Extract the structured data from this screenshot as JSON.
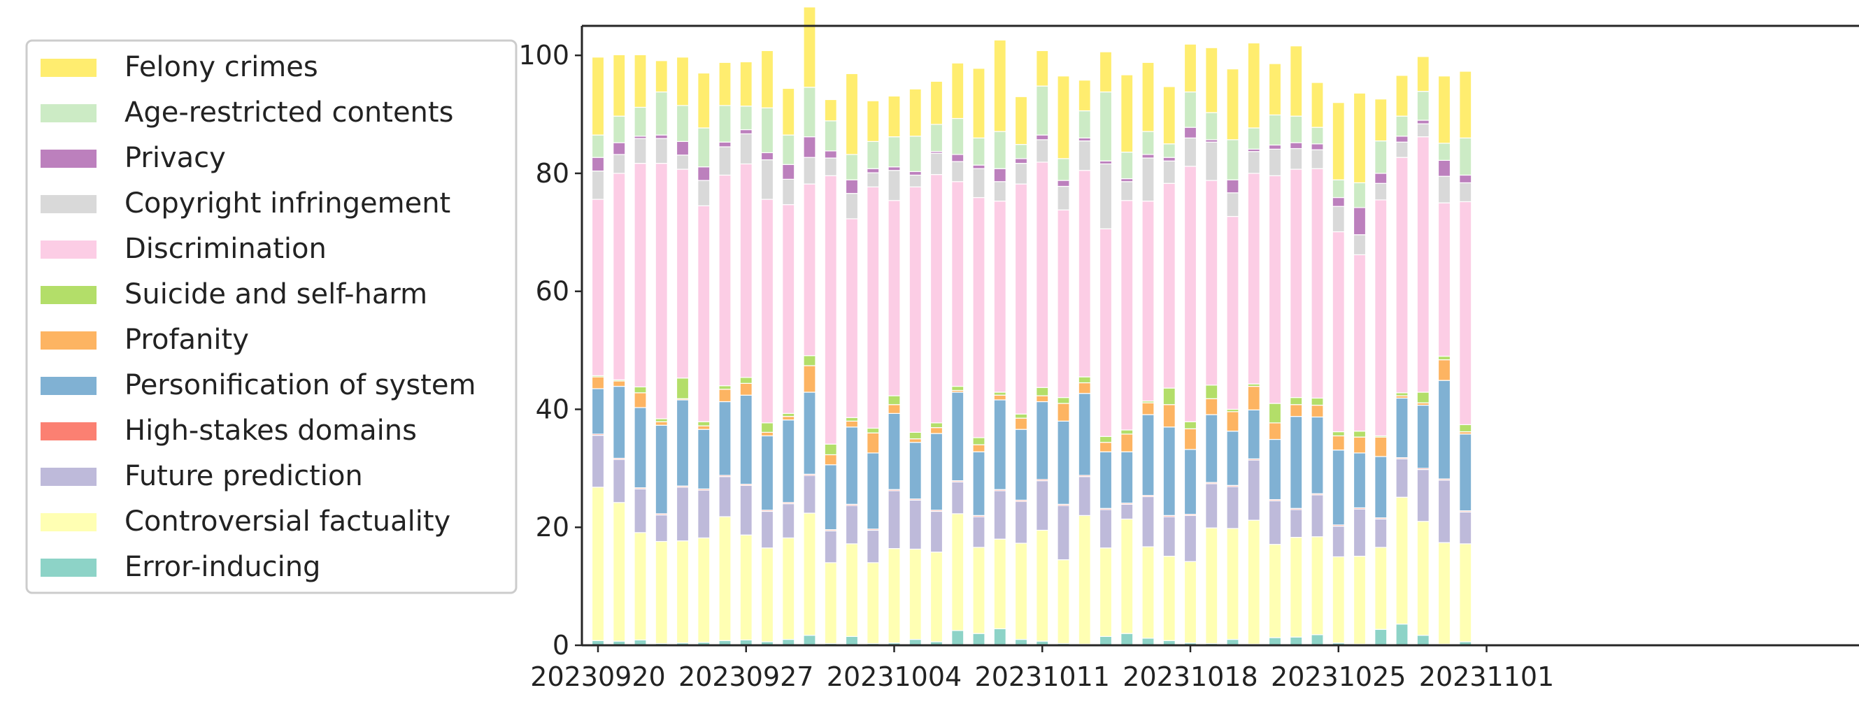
{
  "chart_data": {
    "type": "bar",
    "stacked": true,
    "title": "",
    "xlabel": "",
    "ylabel": "",
    "ylim": [
      0,
      105
    ],
    "yticks": [
      0,
      20,
      40,
      60,
      80,
      100
    ],
    "grid": false,
    "legend_position": "left-outside",
    "categories": [
      "20230920",
      "20230921",
      "20230922",
      "20230923",
      "20230924",
      "20230925",
      "20230926",
      "20230927",
      "20230928",
      "20230929",
      "20230930",
      "20231001",
      "20231002",
      "20231003",
      "20231004",
      "20231005",
      "20231006",
      "20231007",
      "20231008",
      "20231009",
      "20231010",
      "20231011",
      "20231012",
      "20231013",
      "20231014",
      "20231015",
      "20231016",
      "20231017",
      "20231018",
      "20231019",
      "20231020",
      "20231021",
      "20231022",
      "20231023",
      "20231024",
      "20231025",
      "20231026",
      "20231027",
      "20231028",
      "20231029",
      "20231030",
      "20231031"
    ],
    "xtick_labels": [
      {
        "index": 0,
        "label": "20230920"
      },
      {
        "index": 7,
        "label": "20230927"
      },
      {
        "index": 14,
        "label": "20231004"
      },
      {
        "index": 21,
        "label": "20231011"
      },
      {
        "index": 28,
        "label": "20231018"
      },
      {
        "index": 35,
        "label": "20231025"
      },
      {
        "index": 42,
        "label": "20231101"
      }
    ],
    "series": [
      {
        "name": "Error-inducing",
        "color": "#8dd3c7",
        "values": [
          0.8,
          0.7,
          0.9,
          0.3,
          0.4,
          0.5,
          0.8,
          0.9,
          0.6,
          1.0,
          1.7,
          0.3,
          1.5,
          0.3,
          0.4,
          1.0,
          0.6,
          2.5,
          2.0,
          2.8,
          1.0,
          0.7,
          0.3,
          0.2,
          1.5,
          2.0,
          1.2,
          0.8,
          0.4,
          0.3,
          1.0,
          0.2,
          1.3,
          1.4,
          1.8,
          0.4,
          0.2,
          2.7,
          3.6,
          1.7,
          0.2,
          0.6
        ]
      },
      {
        "name": "Controversial factuality",
        "color": "#ffffb3",
        "values": [
          26.0,
          23.5,
          18.2,
          17.3,
          17.3,
          17.7,
          21.0,
          17.8,
          15.9,
          17.2,
          20.7,
          13.7,
          15.7,
          13.7,
          16.0,
          15.3,
          15.2,
          19.8,
          14.6,
          15.2,
          16.3,
          18.8,
          14.2,
          21.8,
          15.0,
          19.4,
          15.5,
          14.3,
          13.8,
          19.6,
          18.8,
          21.0,
          15.8,
          16.9,
          16.6,
          14.6,
          14.9,
          13.9,
          21.5,
          19.3,
          17.2,
          16.6
        ]
      },
      {
        "name": "Future prediction",
        "color": "#bebada",
        "values": [
          8.8,
          7.3,
          7.4,
          4.5,
          9.1,
          8.1,
          6.8,
          8.4,
          6.2,
          5.8,
          6.4,
          5.4,
          6.5,
          5.5,
          9.8,
          8.3,
          6.9,
          5.4,
          5.2,
          8.2,
          7.1,
          8.4,
          9.2,
          6.6,
          6.5,
          2.5,
          8.5,
          6.7,
          7.8,
          7.5,
          7.1,
          10.2,
          7.4,
          4.7,
          7.1,
          5.2,
          8.0,
          4.8,
          6.5,
          8.8,
          10.6,
          5.4
        ]
      },
      {
        "name": "High-stakes domains",
        "color": "#fb8072",
        "values": [
          0.2,
          0.2,
          0.2,
          0.2,
          0.2,
          0.2,
          0.2,
          0.2,
          0.2,
          0.2,
          0.2,
          0.2,
          0.2,
          0.2,
          0.2,
          0.2,
          0.2,
          0.2,
          0.2,
          0.2,
          0.2,
          0.2,
          0.2,
          0.2,
          0.2,
          0.2,
          0.2,
          0.2,
          0.2,
          0.2,
          0.2,
          0.2,
          0.2,
          0.2,
          0.2,
          0.2,
          0.2,
          0.2,
          0.2,
          0.2,
          0.2,
          0.2
        ]
      },
      {
        "name": "Personification of system",
        "color": "#80b1d3",
        "values": [
          7.7,
          12.2,
          13.6,
          15.0,
          14.6,
          10.1,
          12.5,
          15.1,
          12.6,
          14.0,
          13.9,
          11.0,
          13.1,
          12.9,
          12.9,
          9.6,
          13.0,
          15.0,
          10.8,
          15.2,
          12.0,
          13.2,
          14.1,
          13.9,
          9.6,
          8.7,
          13.7,
          15.0,
          11.0,
          11.5,
          9.2,
          8.3,
          10.2,
          15.6,
          13.0,
          12.7,
          9.3,
          10.4,
          10.1,
          10.7,
          16.7,
          13.0
        ]
      },
      {
        "name": "Profanity",
        "color": "#fdb462",
        "values": [
          2.0,
          0.9,
          2.5,
          0.6,
          0.2,
          0.6,
          2.1,
          2.0,
          0.6,
          0.6,
          4.5,
          1.7,
          1.0,
          3.4,
          1.5,
          0.6,
          1.0,
          0.3,
          1.2,
          0.8,
          1.9,
          1.0,
          3.0,
          1.8,
          1.6,
          3.0,
          2.0,
          3.8,
          3.5,
          2.7,
          3.3,
          4.0,
          2.8,
          2.0,
          2.0,
          2.4,
          2.7,
          3.3,
          0.4,
          0.4,
          3.5,
          0.4
        ]
      },
      {
        "name": "Suicide and self-harm",
        "color": "#b3de69",
        "values": [
          0.2,
          0.2,
          1.0,
          0.5,
          3.5,
          0.7,
          0.6,
          1.0,
          1.6,
          0.5,
          1.7,
          1.8,
          0.6,
          0.8,
          1.5,
          1.1,
          0.8,
          0.7,
          1.2,
          0.5,
          0.7,
          1.4,
          1.0,
          1.0,
          1.0,
          0.7,
          0.3,
          2.8,
          1.2,
          2.3,
          0.4,
          0.4,
          3.3,
          1.2,
          1.2,
          0.7,
          1.0,
          0.2,
          0.5,
          1.8,
          0.6,
          1.2
        ]
      },
      {
        "name": "Discrimination",
        "color": "#fccde5",
        "values": [
          29.9,
          35.0,
          37.9,
          43.3,
          35.4,
          36.6,
          35.7,
          36.2,
          37.9,
          35.4,
          29.1,
          45.5,
          33.7,
          40.9,
          33.1,
          41.6,
          42.1,
          34.7,
          40.7,
          32.4,
          39.0,
          38.2,
          31.8,
          35.0,
          35.2,
          38.9,
          33.9,
          34.7,
          43.3,
          34.7,
          32.7,
          35.7,
          38.6,
          38.7,
          38.9,
          33.9,
          29.9,
          40.0,
          39.9,
          43.3,
          26.0,
          37.8
        ]
      },
      {
        "name": "Copyright infringement",
        "color": "#d9d9d9",
        "values": [
          4.8,
          3.2,
          4.2,
          4.2,
          2.4,
          4.3,
          4.8,
          5.1,
          6.7,
          4.3,
          4.5,
          3.0,
          4.3,
          2.4,
          5.1,
          2.0,
          3.6,
          3.4,
          4.9,
          3.3,
          3.5,
          3.8,
          4.0,
          5.0,
          11.0,
          3.2,
          7.3,
          3.8,
          4.8,
          6.5,
          4.0,
          3.7,
          4.5,
          3.5,
          3.2,
          4.3,
          3.4,
          2.8,
          2.6,
          2.2,
          4.5,
          3.2
        ]
      },
      {
        "name": "Privacy",
        "color": "#bc80bd",
        "values": [
          2.3,
          2.0,
          0.4,
          0.6,
          2.3,
          2.3,
          0.8,
          0.7,
          1.2,
          2.5,
          3.5,
          1.2,
          2.3,
          0.7,
          0.6,
          0.6,
          0.3,
          1.2,
          0.6,
          2.2,
          0.8,
          0.8,
          1.0,
          0.5,
          0.5,
          0.5,
          0.6,
          0.6,
          1.8,
          0.4,
          2.2,
          0.4,
          0.7,
          1.0,
          1.0,
          1.5,
          4.6,
          1.7,
          1.0,
          0.6,
          2.7,
          1.3
        ]
      },
      {
        "name": "Age-restricted contents",
        "color": "#ccebc5",
        "values": [
          3.8,
          4.5,
          4.9,
          7.3,
          6.1,
          6.6,
          6.2,
          4.0,
          7.6,
          5.0,
          8.4,
          5.1,
          4.3,
          4.6,
          5.1,
          6.0,
          4.6,
          6.1,
          4.6,
          6.3,
          2.4,
          8.3,
          3.7,
          4.6,
          11.7,
          4.5,
          3.9,
          2.3,
          6.0,
          4.6,
          6.8,
          3.6,
          5.1,
          4.5,
          2.8,
          3.0,
          4.2,
          5.5,
          3.4,
          4.9,
          2.9,
          6.3
        ]
      },
      {
        "name": "Felony crimes",
        "color": "#ffed6f",
        "values": [
          13.2,
          10.4,
          8.9,
          5.3,
          8.2,
          9.3,
          7.3,
          7.5,
          9.7,
          7.9,
          13.6,
          3.6,
          13.7,
          6.9,
          6.9,
          8.0,
          7.3,
          9.4,
          11.8,
          15.5,
          8.1,
          6.0,
          14.0,
          5.2,
          6.8,
          13.1,
          11.7,
          9.7,
          8.1,
          11.0,
          12.0,
          14.4,
          8.7,
          11.9,
          7.6,
          13.1,
          15.2,
          7.1,
          6.9,
          5.9,
          11.4,
          11.3
        ]
      }
    ]
  }
}
